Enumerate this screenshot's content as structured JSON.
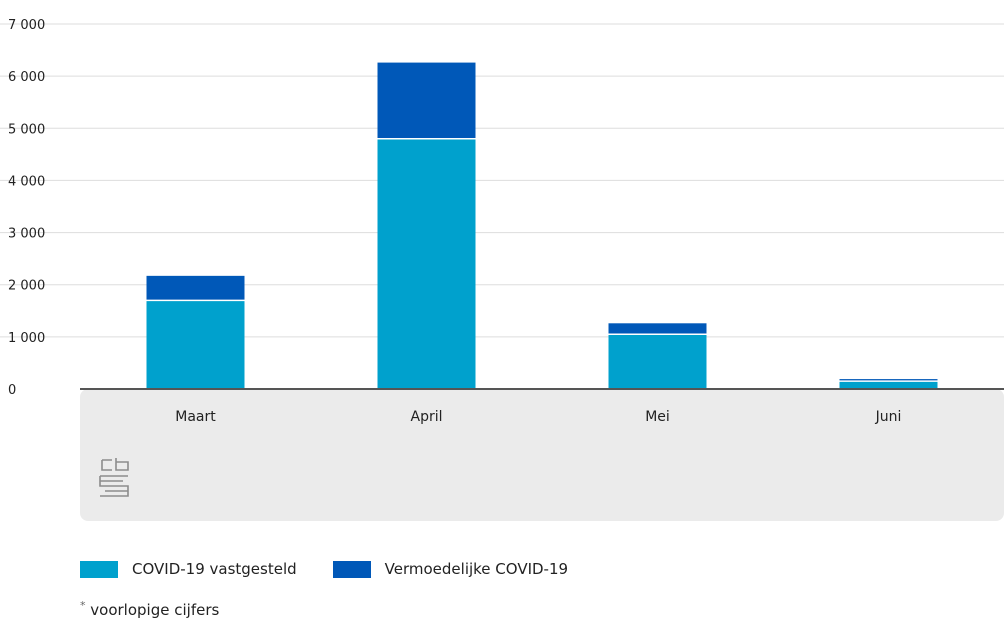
{
  "chart_data": {
    "type": "bar",
    "stacked": true,
    "categories": [
      "Maart",
      "April",
      "Mei",
      "Juni"
    ],
    "series": [
      {
        "name": "COVID-19 vastgesteld",
        "values": [
          1700,
          4800,
          1050,
          150
        ],
        "color": "#00a1cd"
      },
      {
        "name": "Vermoedelijke COVID-19",
        "values": [
          470,
          1460,
          210,
          40
        ],
        "color": "#0058b8"
      }
    ],
    "ylim": [
      0,
      7000
    ],
    "yticks": [
      0,
      1000,
      2000,
      3000,
      4000,
      5000,
      6000,
      7000
    ],
    "ytick_labels": [
      "0",
      "1 000",
      "2 000",
      "3 000",
      "4 000",
      "5 000",
      "6 000",
      "7 000"
    ],
    "grid": true,
    "legend_position": "bottom-left"
  },
  "logo": "cbs",
  "footnote": {
    "marker": "*",
    "text": "voorlopige cijfers"
  }
}
